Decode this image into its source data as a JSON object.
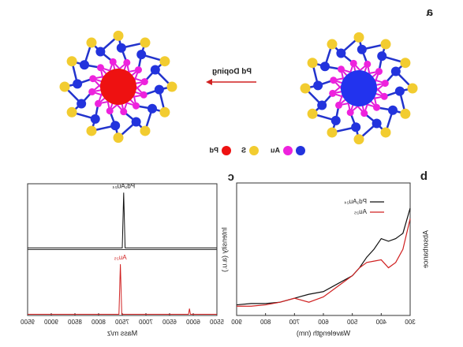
{
  "panel_a": {
    "label": "a",
    "arrow_text": "Pd Doping",
    "legend": [
      "Au",
      "S",
      "Pd"
    ]
  },
  "chart_data": [
    {
      "type": "line",
      "panel": "b",
      "xlabel": "Wavelength (nm)",
      "ylabel": "Absorbance",
      "xlim": [
        300,
        900
      ],
      "xticks": [
        300,
        400,
        500,
        600,
        700,
        800,
        900
      ],
      "ylim": [
        0,
        1
      ],
      "x": [
        300,
        325,
        350,
        375,
        400,
        425,
        450,
        475,
        500,
        550,
        600,
        650,
        700,
        750,
        800,
        850,
        900
      ],
      "series": [
        {
          "name": "Pd₁Au₂₄",
          "color": "#111111",
          "values": [
            0.81,
            0.62,
            0.58,
            0.56,
            0.58,
            0.5,
            0.44,
            0.36,
            0.3,
            0.24,
            0.18,
            0.16,
            0.13,
            0.1,
            0.09,
            0.09,
            0.08
          ]
        },
        {
          "name": "Au₂₅",
          "color": "#d02020",
          "values": [
            0.73,
            0.5,
            0.4,
            0.36,
            0.42,
            0.41,
            0.4,
            0.36,
            0.3,
            0.22,
            0.14,
            0.1,
            0.13,
            0.1,
            0.08,
            0.07,
            0.07
          ]
        }
      ]
    },
    {
      "type": "stacked-spectra",
      "panel": "c",
      "xlabel": "Mass m/z",
      "ylabel": "Intensity (a.u.)",
      "xlim": [
        5500,
        9500
      ],
      "xticks": [
        5500,
        6000,
        6500,
        7000,
        7500,
        8000,
        8500,
        9000,
        9500
      ],
      "ylim": [
        0,
        1.1
      ],
      "series": [
        {
          "name": "Pd₁Au₂₄",
          "color": "#111111",
          "x": [
            5500,
            7440,
            7470,
            7500,
            9500
          ],
          "values": [
            0.03,
            0.03,
            1,
            0.03,
            0.03
          ]
        },
        {
          "name": "Au₂₅",
          "color": "#d02020",
          "x": [
            5500,
            6060,
            6080,
            6100,
            7510,
            7540,
            7570,
            9500
          ],
          "values": [
            0.02,
            0.02,
            0.12,
            0.02,
            0.02,
            0.9,
            0.02,
            0.02
          ]
        }
      ]
    }
  ]
}
